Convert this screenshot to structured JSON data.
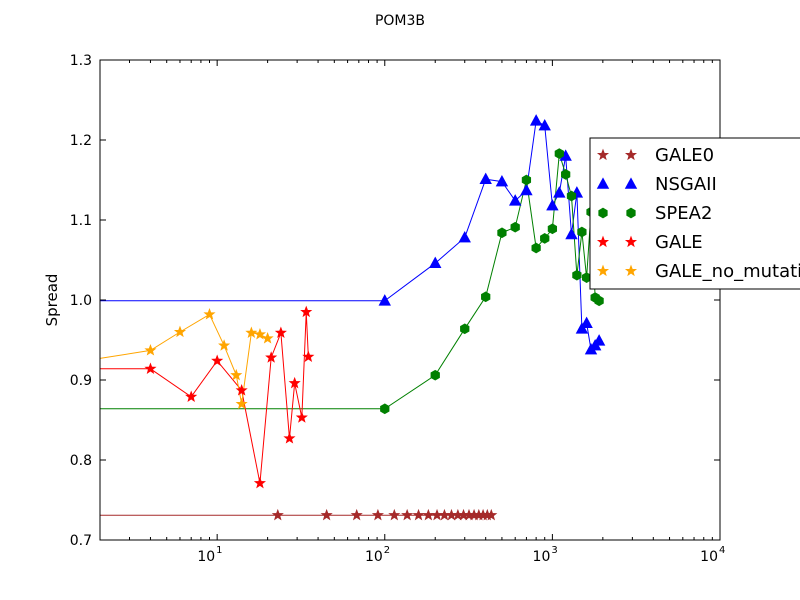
{
  "chart_data": {
    "type": "scatter",
    "title": "POM3B",
    "xlabel": "",
    "ylabel": "Spread",
    "xscale": "log",
    "xlim": [
      2,
      10000
    ],
    "ylim": [
      0.7,
      1.3
    ],
    "xticks": [
      {
        "value": 10,
        "base": "10",
        "exp": "1"
      },
      {
        "value": 100,
        "base": "10",
        "exp": "2"
      },
      {
        "value": 1000,
        "base": "10",
        "exp": "3"
      },
      {
        "value": 10000,
        "base": "10",
        "exp": "4"
      }
    ],
    "yticks": [
      "0.7",
      "0.8",
      "0.9",
      "1.0",
      "1.1",
      "1.2",
      "1.3"
    ],
    "grid": false,
    "legend_position": "right",
    "series": [
      {
        "name": "GALE0",
        "color": "#a52a2a",
        "marker": "star",
        "x": [
          2,
          23,
          45,
          68,
          91,
          114,
          136,
          159,
          182,
          205,
          227,
          250,
          273,
          295,
          318,
          341,
          364,
          386,
          409,
          432
        ],
        "y": [
          0.731,
          0.731,
          0.731,
          0.731,
          0.731,
          0.731,
          0.731,
          0.731,
          0.731,
          0.731,
          0.731,
          0.731,
          0.731,
          0.731,
          0.731,
          0.731,
          0.731,
          0.731,
          0.731,
          0.731
        ]
      },
      {
        "name": "NSGAII",
        "color": "#0000ff",
        "marker": "triangle",
        "x": [
          2,
          100,
          200,
          300,
          400,
          500,
          600,
          700,
          800,
          900,
          1000,
          1100,
          1200,
          1300,
          1400,
          1500,
          1600,
          1700,
          1800,
          1900
        ],
        "y": [
          0.999,
          0.999,
          1.046,
          1.078,
          1.151,
          1.148,
          1.124,
          1.137,
          1.224,
          1.218,
          1.118,
          1.134,
          1.18,
          1.082,
          1.134,
          0.964,
          0.971,
          0.938,
          0.943,
          0.949
        ]
      },
      {
        "name": "SPEA2",
        "color": "#008000",
        "marker": "hexagon",
        "x": [
          2,
          100,
          200,
          300,
          400,
          500,
          600,
          700,
          800,
          900,
          1000,
          1100,
          1200,
          1300,
          1400,
          1500,
          1600,
          1700,
          1800,
          1900
        ],
        "y": [
          0.864,
          0.864,
          0.906,
          0.964,
          1.004,
          1.084,
          1.091,
          1.15,
          1.065,
          1.077,
          1.089,
          1.183,
          1.157,
          1.13,
          1.031,
          1.085,
          1.028,
          1.11,
          1.003,
          0.999
        ]
      },
      {
        "name": "GALE",
        "color": "#ff0000",
        "marker": "star",
        "x": [
          2,
          4,
          7,
          10,
          14,
          18,
          21,
          24,
          27,
          29,
          32,
          34,
          35
        ],
        "y": [
          0.914,
          0.914,
          0.879,
          0.924,
          0.887,
          0.771,
          0.928,
          0.959,
          0.827,
          0.896,
          0.853,
          0.985,
          0.929
        ]
      },
      {
        "name": "GALE_no_mutation",
        "color": "#ffa500",
        "marker": "star",
        "x": [
          2,
          4,
          6,
          9,
          11,
          13,
          14,
          16,
          18,
          20
        ],
        "y": [
          0.927,
          0.937,
          0.96,
          0.982,
          0.943,
          0.906,
          0.87,
          0.959,
          0.957,
          0.952
        ]
      }
    ]
  }
}
